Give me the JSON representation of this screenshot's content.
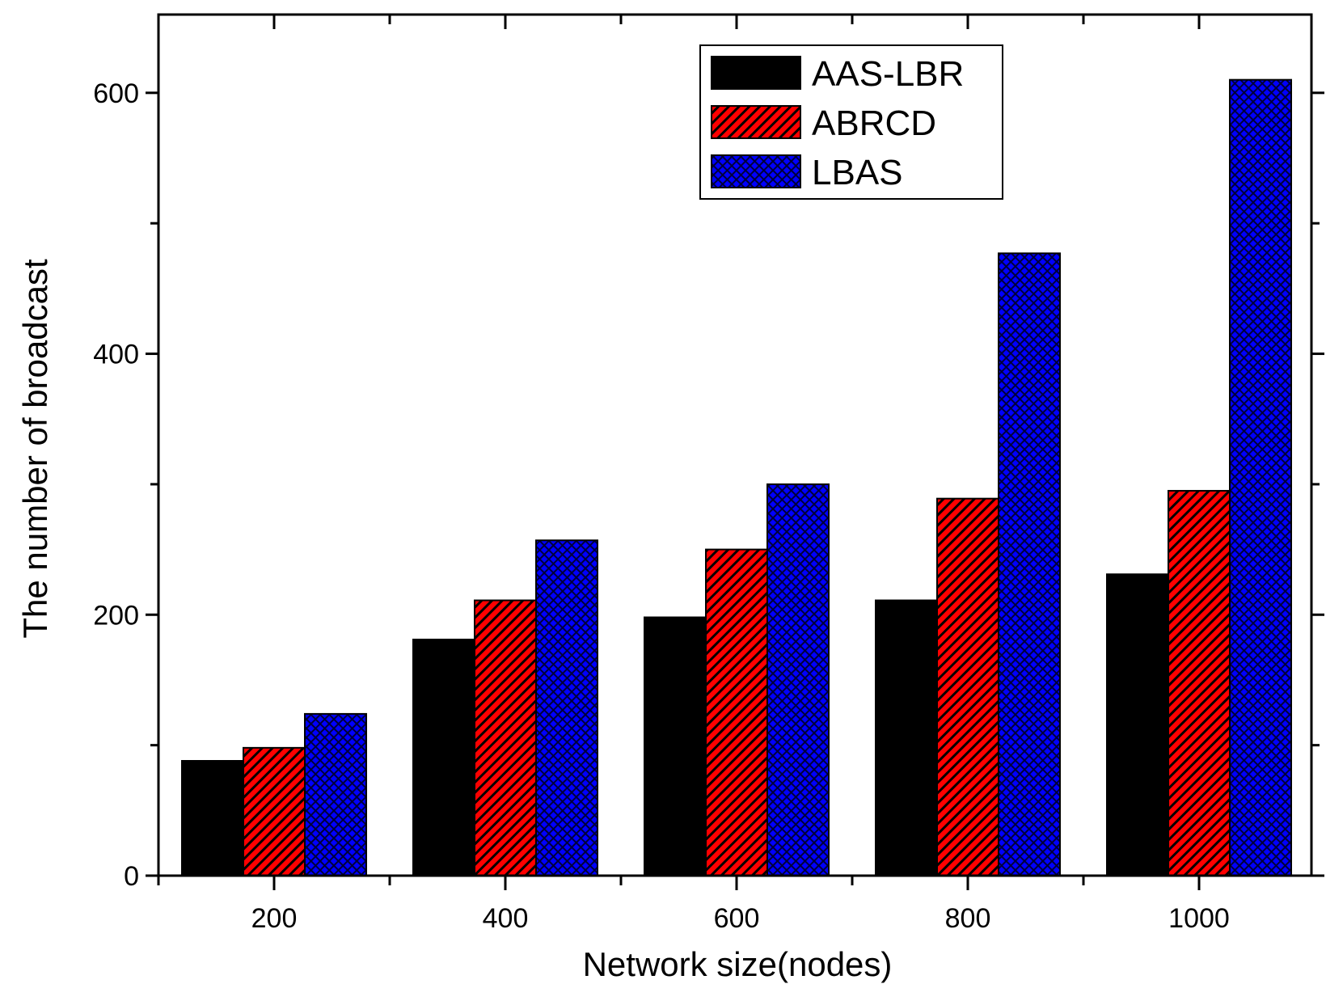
{
  "chart_data": {
    "type": "bar",
    "title": "",
    "xlabel": "Network size(nodes)",
    "ylabel": "The number of broadcast",
    "categories": [
      "200",
      "400",
      "600",
      "800",
      "1000"
    ],
    "ylim": [
      0,
      660
    ],
    "yticks": [
      0,
      200,
      400,
      600
    ],
    "grid": false,
    "legend_position": "top-right",
    "series": [
      {
        "name": "AAS-LBR",
        "values": [
          88,
          181,
          198,
          211,
          231
        ],
        "color": "#000000",
        "pattern": "solid"
      },
      {
        "name": "ABRCD",
        "values": [
          98,
          211,
          250,
          289,
          295
        ],
        "color": "#ff0000",
        "pattern": "diagonal-hatch"
      },
      {
        "name": "LBAS",
        "values": [
          124,
          257,
          300,
          477,
          610
        ],
        "color": "#0000ff",
        "pattern": "crosshatch"
      }
    ]
  }
}
